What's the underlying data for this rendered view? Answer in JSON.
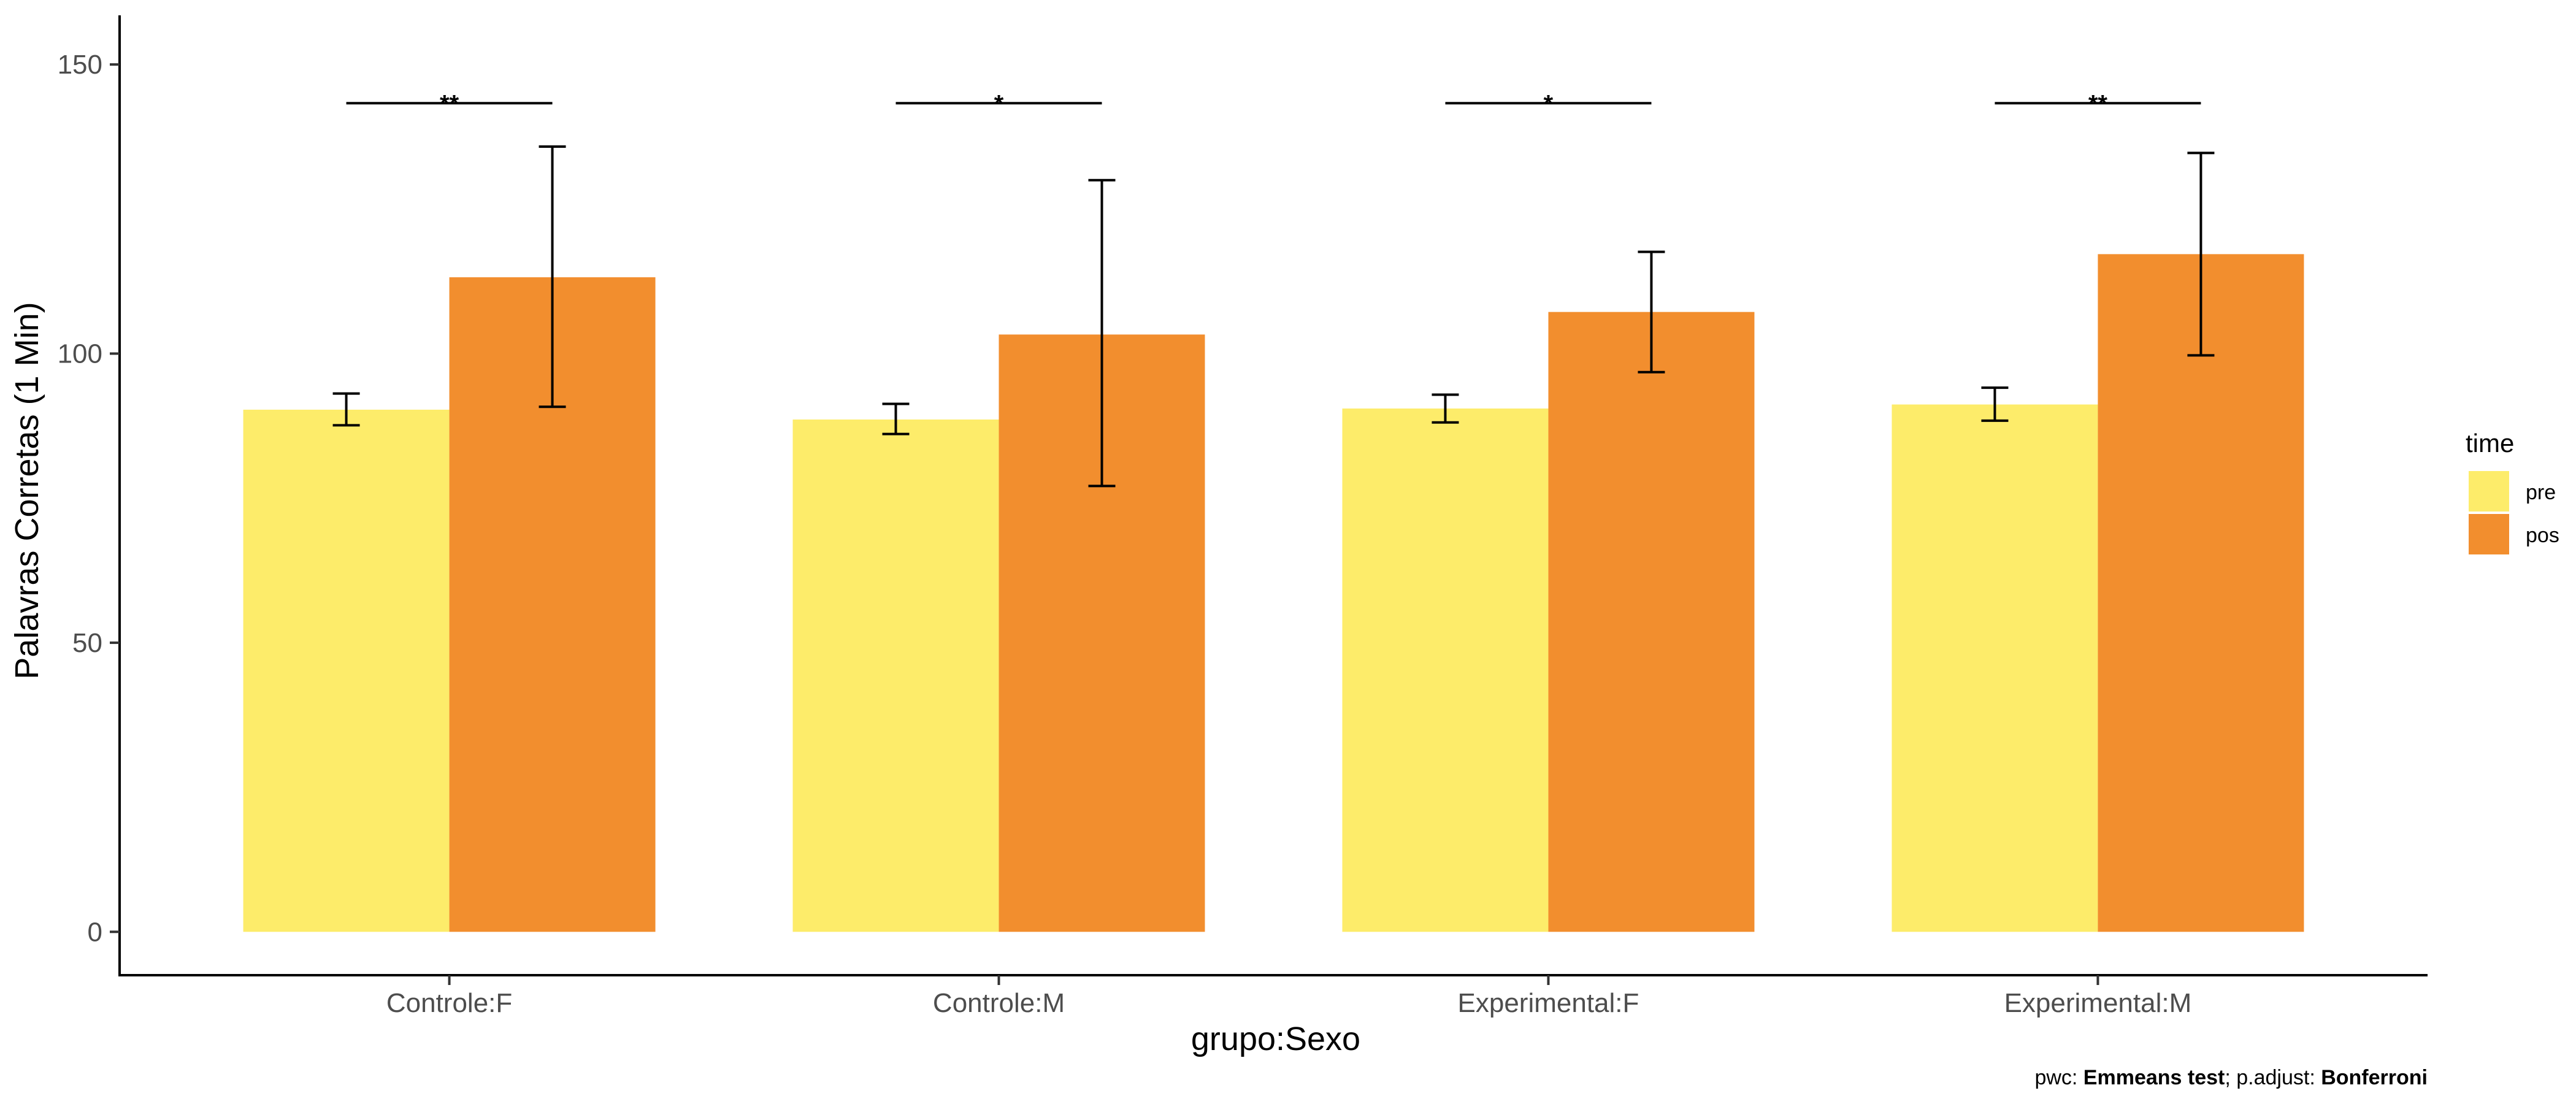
{
  "chart_data": {
    "type": "bar",
    "xlabel": "grupo:Sexo",
    "ylabel": "Palavras Corretas (1 Min)",
    "ylim": [
      -7.5,
      158.5
    ],
    "yticks": [
      0,
      50,
      100,
      150
    ],
    "categories": [
      "Controle:F",
      "Controle:M",
      "Experimental:F",
      "Experimental:M"
    ],
    "series": [
      {
        "name": "pre",
        "color": "#FDEC6A",
        "values": [
          90.3,
          88.6,
          90.5,
          91.2
        ],
        "error_low": [
          87.6,
          86.1,
          88.1,
          88.4
        ],
        "error_high": [
          93.1,
          91.3,
          92.9,
          94.1
        ]
      },
      {
        "name": "pos",
        "color": "#F28E2E",
        "values": [
          113.2,
          103.3,
          107.2,
          117.2
        ],
        "error_low": [
          90.8,
          77.1,
          96.8,
          99.7
        ],
        "error_high": [
          135.8,
          130.0,
          117.6,
          134.7
        ]
      }
    ],
    "significance": [
      {
        "category": "Controle:F",
        "label": "**",
        "y": 143.3
      },
      {
        "category": "Controle:M",
        "label": "*",
        "y": 143.3
      },
      {
        "category": "Experimental:F",
        "label": "*",
        "y": 143.3
      },
      {
        "category": "Experimental:M",
        "label": "**",
        "y": 143.3
      }
    ],
    "legend": {
      "title": "time",
      "position": "right"
    },
    "caption_parts": [
      {
        "text": "pwc: ",
        "bold": false
      },
      {
        "text": "Emmeans test",
        "bold": true
      },
      {
        "text": "; p.adjust: ",
        "bold": false
      },
      {
        "text": "Bonferroni",
        "bold": true
      }
    ],
    "grid": false
  }
}
